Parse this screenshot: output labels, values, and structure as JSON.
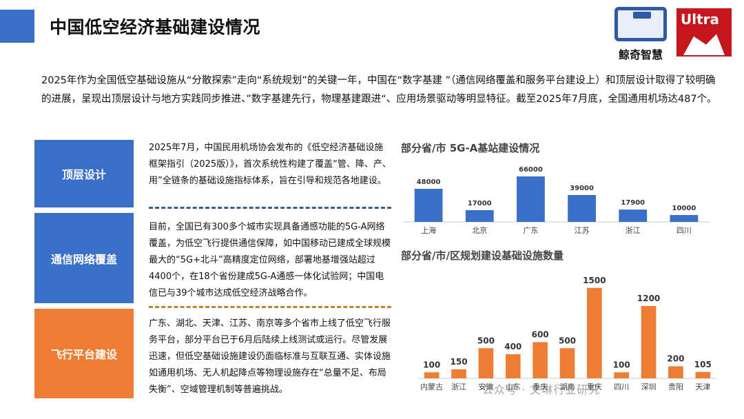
{
  "page_title": "中国低空经济基础建设情况",
  "logo": {
    "brand1": "鲸奇智慧",
    "brand2": "Ultra"
  },
  "intro": "2025年作为全国低空基础设施从“分散探索”走向“系统规划”的关键一年，中国在“数字基建 ”（通信网络覆盖和服务平台建设上）和顶层设计取得了较明确的进展，呈现出顶层设计与地方实践同步推进、”数字基建先行，物理基建跟进“、应用场景驱动等明显特征。截至2025年7月底，全国通用机场达487个。",
  "sections": [
    {
      "label": "顶层设计",
      "text": "2025年7月，中国民用机场协会发布的《低空经济基础设施框架指引（2025版）》，首次系统性构建了覆盖“管、降、产、用”全链条的基础设施指标体系，旨在引导和规范各地建设。"
    },
    {
      "label": "通信网络覆盖",
      "text": "目前，全国已有300多个城市实现具备通感功能的5G-A网络覆盖，为低空飞行提供通信保障，如中国移动已建成全球规模最大的“5G+北斗”高精度定位网络，部署地基增强站超过4400个，在18个省份建成5G-A通感一体化试验网；中国电信已与39个城市达成低空经济战略合作。"
    },
    {
      "label": "飞行平台建设",
      "text": "广东、湖北、天津、江苏、南京等多个省市上线了低空飞行服务平台，部分平台已于6月后陆续上线测试或运行。尽管发展迅速，但低空基础设施建设仍面临标准与互联互通、实体设施如通用机场、无人机起降点等物理设施存在“总量不足、布局失衡”、空域管理机制等普遍挑战。"
    }
  ],
  "chart_data": [
    {
      "type": "bar",
      "title": "部分省/市 5G-A基站建设情况",
      "categories": [
        "上海",
        "北京",
        "广东",
        "江苏",
        "浙江",
        "四川"
      ],
      "values": [
        48000,
        17000,
        66000,
        39000,
        17900,
        10000
      ],
      "value_labels": [
        "48000",
        "17000",
        "66000",
        "39000",
        "17900",
        "10000"
      ],
      "color": "#3a6fc7",
      "ylim": [
        0,
        70000
      ],
      "grid": false
    },
    {
      "type": "bar",
      "title": "部分省/市/区规划建设基础设施数量",
      "categories": [
        "内蒙古",
        "浙江",
        "安徽",
        "山东",
        "重庆",
        "湖南",
        "重庆",
        "四川",
        "深圳",
        "贵阳",
        "天津"
      ],
      "values": [
        100,
        150,
        500,
        400,
        600,
        500,
        1500,
        100,
        1200,
        200,
        105
      ],
      "value_labels": [
        "100",
        "150",
        "500",
        "400",
        "600",
        "500",
        "1500",
        "100",
        "1200",
        "200",
        "105"
      ],
      "color": "#ee7d33",
      "ylim": [
        0,
        1600
      ],
      "grid": false
    }
  ],
  "watermark": "公众号 · 文琳行业研究",
  "colors": {
    "blue": "#3a6fc7",
    "orange": "#ee7d33",
    "axis": "#cccccc"
  }
}
